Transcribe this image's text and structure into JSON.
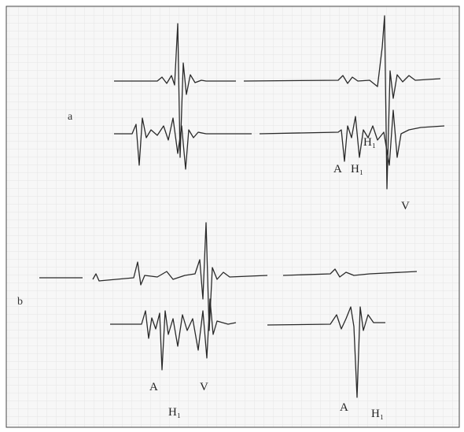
{
  "panels": [
    {
      "label": "a",
      "annotations": [
        "A",
        "H₁",
        "H₁",
        "V"
      ]
    },
    {
      "label": "b",
      "annotations": [
        "A",
        "V",
        "H₁",
        "A",
        "H₁"
      ]
    }
  ]
}
